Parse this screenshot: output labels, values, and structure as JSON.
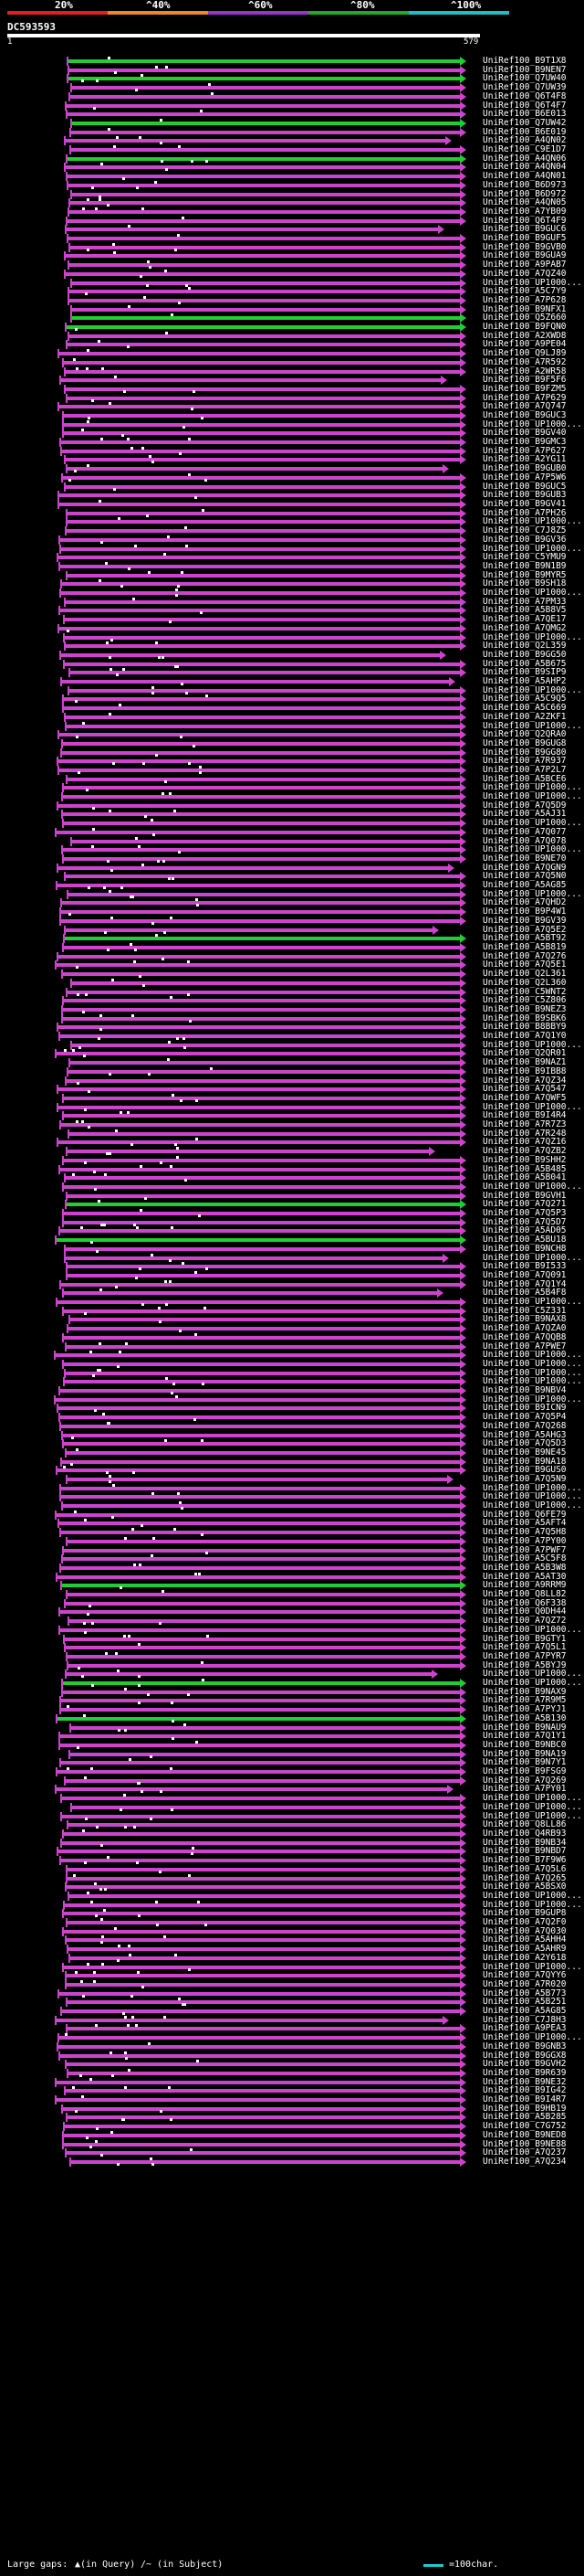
{
  "scale": {
    "labels": [
      "20%",
      "^40%",
      "^60%",
      "^80%",
      "^100%"
    ],
    "colors": [
      "#dd2222",
      "#ee8822",
      "#9933cc",
      "#22aa22",
      "#22bbcc"
    ]
  },
  "query": {
    "name": "DC593593",
    "start": "1",
    "end": "579"
  },
  "hits": [
    {
      "label": "UniRef100_B9T1X8",
      "color": "green"
    },
    {
      "label": "UniRef100_B9NEN7",
      "color": "pink"
    },
    {
      "label": "UniRef100_Q7UW40",
      "color": "green"
    },
    {
      "label": "UniRef100_Q7UW39",
      "color": "pink"
    },
    {
      "label": "UniRef100_Q6T4F8",
      "color": "pink"
    },
    {
      "label": "UniRef100_Q6T4F7",
      "color": "pink"
    },
    {
      "label": "UniRef100_B6E013",
      "color": "pink"
    },
    {
      "label": "UniRef100_Q7UW42",
      "color": "green"
    },
    {
      "label": "UniRef100_B6E019",
      "color": "pink"
    },
    {
      "label": "UniRef100_A4QN02",
      "color": "pink"
    },
    {
      "label": "UniRef100_C9E1D7",
      "color": "pink"
    },
    {
      "label": "UniRef100_A4QN06",
      "color": "green"
    },
    {
      "label": "UniRef100_A4QN04",
      "color": "pink"
    },
    {
      "label": "UniRef100_A4QN01",
      "color": "pink"
    },
    {
      "label": "UniRef100_B6D973",
      "color": "pink"
    },
    {
      "label": "UniRef100_B6D972",
      "color": "pink"
    },
    {
      "label": "UniRef100_A4QN05",
      "color": "pink"
    },
    {
      "label": "UniRef100_A7YB09",
      "color": "pink"
    },
    {
      "label": "UniRef100_Q6T4F9",
      "color": "pink"
    },
    {
      "label": "UniRef100_B9GUC6",
      "color": "pink"
    },
    {
      "label": "UniRef100_B9GUF5",
      "color": "pink"
    },
    {
      "label": "UniRef100_B9GVB0",
      "color": "pink"
    },
    {
      "label": "UniRef100_B9GUA9",
      "color": "pink"
    },
    {
      "label": "UniRef100_A9PAB7",
      "color": "pink"
    },
    {
      "label": "UniRef100_A7QZ40",
      "color": "pink"
    },
    {
      "label": "UniRef100_UP1000...",
      "color": "pink"
    },
    {
      "label": "UniRef100_A5C7Y9",
      "color": "pink"
    },
    {
      "label": "UniRef100_A7P628",
      "color": "pink"
    },
    {
      "label": "UniRef100_B9NFX1",
      "color": "pink"
    },
    {
      "label": "UniRef100_Q5Z660",
      "color": "green"
    },
    {
      "label": "UniRef100_B9FQN0",
      "color": "green"
    },
    {
      "label": "UniRef100_A2XWD8",
      "color": "pink"
    },
    {
      "label": "UniRef100_A9PE04",
      "color": "pink"
    },
    {
      "label": "UniRef100_Q9LJ89",
      "color": "pink"
    },
    {
      "label": "UniRef100_A7R592",
      "color": "pink"
    },
    {
      "label": "UniRef100_A2WR58",
      "color": "pink"
    },
    {
      "label": "UniRef100_B9F5F6",
      "color": "pink"
    },
    {
      "label": "UniRef100_B9FZM5",
      "color": "pink"
    },
    {
      "label": "UniRef100_A7P629",
      "color": "pink"
    },
    {
      "label": "UniRef100_A7Q747",
      "color": "pink"
    },
    {
      "label": "UniRef100_B9GUC3",
      "color": "pink"
    },
    {
      "label": "UniRef100_UP1000...",
      "color": "pink"
    },
    {
      "label": "UniRef100_B9GV40",
      "color": "pink"
    },
    {
      "label": "UniRef100_B9GMC3",
      "color": "pink"
    },
    {
      "label": "UniRef100_A7P627",
      "color": "pink"
    },
    {
      "label": "UniRef100_A2YG11",
      "color": "pink"
    },
    {
      "label": "UniRef100_B9GUB0",
      "color": "pink"
    },
    {
      "label": "UniRef100_A7P5W6",
      "color": "pink"
    },
    {
      "label": "UniRef100_B9GUC5",
      "color": "pink"
    },
    {
      "label": "UniRef100_B9GUB3",
      "color": "pink"
    },
    {
      "label": "UniRef100_B9GV41",
      "color": "pink"
    },
    {
      "label": "UniRef100_A7PH26",
      "color": "pink"
    },
    {
      "label": "UniRef100_UP1000...",
      "color": "pink"
    },
    {
      "label": "UniRef100_C7J8Z5",
      "color": "pink"
    },
    {
      "label": "UniRef100_B9GV36",
      "color": "pink"
    },
    {
      "label": "UniRef100_UP1000...",
      "color": "pink"
    },
    {
      "label": "UniRef100_C5YMU9",
      "color": "pink"
    },
    {
      "label": "UniRef100_B9N1B9",
      "color": "pink"
    },
    {
      "label": "UniRef100_B9MYR5",
      "color": "pink"
    },
    {
      "label": "UniRef100_B9SH18",
      "color": "pink"
    },
    {
      "label": "UniRef100_UP1000...",
      "color": "pink"
    },
    {
      "label": "UniRef100_A7PM33",
      "color": "pink"
    },
    {
      "label": "UniRef100_A5B8V5",
      "color": "pink"
    },
    {
      "label": "UniRef100_A7QE17",
      "color": "pink"
    },
    {
      "label": "UniRef100_A7QMG2",
      "color": "pink"
    },
    {
      "label": "UniRef100_UP1000...",
      "color": "pink"
    },
    {
      "label": "UniRef100_Q2L359",
      "color": "pink"
    },
    {
      "label": "UniRef100_B9GG50",
      "color": "pink"
    },
    {
      "label": "UniRef100_A5B675",
      "color": "pink"
    },
    {
      "label": "UniRef100_B9SIP9",
      "color": "pink"
    },
    {
      "label": "UniRef100_A5AHP2",
      "color": "pink"
    },
    {
      "label": "UniRef100_UP1000...",
      "color": "pink"
    },
    {
      "label": "UniRef100_A5C9Q5",
      "color": "pink"
    },
    {
      "label": "UniRef100_A5C669",
      "color": "pink"
    },
    {
      "label": "UniRef100_A2ZKF1",
      "color": "pink"
    },
    {
      "label": "UniRef100_UP1000...",
      "color": "pink"
    },
    {
      "label": "UniRef100_Q2QRA0",
      "color": "pink"
    },
    {
      "label": "UniRef100_B9GUG8",
      "color": "pink"
    },
    {
      "label": "UniRef100_B9GG80",
      "color": "pink"
    },
    {
      "label": "UniRef100_A7R937",
      "color": "pink"
    },
    {
      "label": "UniRef100_A7P2L7",
      "color": "pink"
    },
    {
      "label": "UniRef100_A5BCE6",
      "color": "pink"
    },
    {
      "label": "UniRef100_UP1000...",
      "color": "pink"
    },
    {
      "label": "UniRef100_UP1000...",
      "color": "pink"
    },
    {
      "label": "UniRef100_A7Q5D9",
      "color": "pink"
    },
    {
      "label": "UniRef100_A5AJ31",
      "color": "pink"
    },
    {
      "label": "UniRef100_UP1000...",
      "color": "pink"
    },
    {
      "label": "UniRef100_A7Q077",
      "color": "pink"
    },
    {
      "label": "UniRef100_A7Q078",
      "color": "pink"
    },
    {
      "label": "UniRef100_UP1000...",
      "color": "pink"
    },
    {
      "label": "UniRef100_B9NE70",
      "color": "pink"
    },
    {
      "label": "UniRef100_A7QGN9",
      "color": "pink"
    },
    {
      "label": "UniRef100_A7Q5N0",
      "color": "pink"
    },
    {
      "label": "UniRef100_A5AG85",
      "color": "pink"
    },
    {
      "label": "UniRef100_UP1000...",
      "color": "pink"
    },
    {
      "label": "UniRef100_A7QHD2",
      "color": "pink"
    },
    {
      "label": "UniRef100_B9P4W1",
      "color": "pink"
    },
    {
      "label": "UniRef100_B9GV39",
      "color": "pink"
    },
    {
      "label": "UniRef100_A7Q5E2",
      "color": "pink"
    },
    {
      "label": "UniRef100_A5BT92",
      "color": "green"
    },
    {
      "label": "UniRef100_A5B819",
      "color": "pink"
    },
    {
      "label": "UniRef100_A7Q276",
      "color": "pink"
    },
    {
      "label": "UniRef100_A7Q5E1",
      "color": "pink"
    },
    {
      "label": "UniRef100_Q2L361",
      "color": "pink"
    },
    {
      "label": "UniRef100_Q2L360",
      "color": "pink"
    },
    {
      "label": "UniRef100_C5WNT2",
      "color": "pink"
    },
    {
      "label": "UniRef100_C5Z806",
      "color": "pink"
    },
    {
      "label": "UniRef100_B9NEZ3",
      "color": "pink"
    },
    {
      "label": "UniRef100_B9SBK6",
      "color": "pink"
    },
    {
      "label": "UniRef100_B8BBY9",
      "color": "pink"
    },
    {
      "label": "UniRef100_A7Q1Y0",
      "color": "pink"
    },
    {
      "label": "UniRef100_UP1000...",
      "color": "pink"
    },
    {
      "label": "UniRef100_Q2QR01",
      "color": "pink"
    },
    {
      "label": "UniRef100_B9NAZ1",
      "color": "pink"
    },
    {
      "label": "UniRef100_B9IBB8",
      "color": "pink"
    },
    {
      "label": "UniRef100_A7QZ34",
      "color": "pink"
    },
    {
      "label": "UniRef100_A7Q547",
      "color": "pink"
    },
    {
      "label": "UniRef100_A7QWF5",
      "color": "pink"
    },
    {
      "label": "UniRef100_UP1000...",
      "color": "pink"
    },
    {
      "label": "UniRef100_B9I4R4",
      "color": "pink"
    },
    {
      "label": "UniRef100_A7R7Z3",
      "color": "pink"
    },
    {
      "label": "UniRef100_A7R248",
      "color": "pink"
    },
    {
      "label": "UniRef100_A7QZ16",
      "color": "pink"
    },
    {
      "label": "UniRef100_A7QZB2",
      "color": "pink"
    },
    {
      "label": "UniRef100_B9SHH2",
      "color": "pink"
    },
    {
      "label": "UniRef100_A5B485",
      "color": "pink"
    },
    {
      "label": "UniRef100_A5B041",
      "color": "pink"
    },
    {
      "label": "UniRef100_UP1000...",
      "color": "pink"
    },
    {
      "label": "UniRef100_B9GVH1",
      "color": "pink"
    },
    {
      "label": "UniRef100_A7Q271",
      "color": "green"
    },
    {
      "label": "UniRef100_A7Q5P3",
      "color": "pink"
    },
    {
      "label": "UniRef100_A7Q5D7",
      "color": "pink"
    },
    {
      "label": "UniRef100_A5AD05",
      "color": "pink"
    },
    {
      "label": "UniRef100_A5BU18",
      "color": "green"
    },
    {
      "label": "UniRef100_B9NCH8",
      "color": "pink"
    },
    {
      "label": "UniRef100_UP1000...",
      "color": "pink"
    },
    {
      "label": "UniRef100_B9I533",
      "color": "pink"
    },
    {
      "label": "UniRef100_A7Q091",
      "color": "pink"
    },
    {
      "label": "UniRef100_A7Q1Y4",
      "color": "pink"
    },
    {
      "label": "UniRef100_A5B4F8",
      "color": "pink"
    },
    {
      "label": "UniRef100_UP1000...",
      "color": "pink"
    },
    {
      "label": "UniRef100_C5Z331",
      "color": "pink"
    },
    {
      "label": "UniRef100_B9NAX8",
      "color": "pink"
    },
    {
      "label": "UniRef100_A7QZA0",
      "color": "pink"
    },
    {
      "label": "UniRef100_A7QQB8",
      "color": "pink"
    },
    {
      "label": "UniRef100_A7PWE7",
      "color": "pink"
    },
    {
      "label": "UniRef100_UP1000...",
      "color": "pink"
    },
    {
      "label": "UniRef100_UP1000...",
      "color": "pink"
    },
    {
      "label": "UniRef100_UP1000...",
      "color": "pink"
    },
    {
      "label": "UniRef100_UP1000...",
      "color": "pink"
    },
    {
      "label": "UniRef100_B9NBV4",
      "color": "pink"
    },
    {
      "label": "UniRef100_UP1000...",
      "color": "pink"
    },
    {
      "label": "UniRef100_B9ICN9",
      "color": "pink"
    },
    {
      "label": "UniRef100_A7Q5P4",
      "color": "pink"
    },
    {
      "label": "UniRef100_A7Q268",
      "color": "pink"
    },
    {
      "label": "UniRef100_A5AHG3",
      "color": "pink"
    },
    {
      "label": "UniRef100_A7Q5D3",
      "color": "pink"
    },
    {
      "label": "UniRef100_B9NE45",
      "color": "pink"
    },
    {
      "label": "UniRef100_B9NA18",
      "color": "pink"
    },
    {
      "label": "UniRef100_B9GUS0",
      "color": "pink"
    },
    {
      "label": "UniRef100_A7Q5N9",
      "color": "pink"
    },
    {
      "label": "UniRef100_UP1000...",
      "color": "pink"
    },
    {
      "label": "UniRef100_UP1000...",
      "color": "pink"
    },
    {
      "label": "UniRef100_UP1000...",
      "color": "pink"
    },
    {
      "label": "UniRef100_Q6FE79",
      "color": "pink"
    },
    {
      "label": "UniRef100_A5AFT4",
      "color": "pink"
    },
    {
      "label": "UniRef100_A7Q5H8",
      "color": "pink"
    },
    {
      "label": "UniRef100_A7PY00",
      "color": "pink"
    },
    {
      "label": "UniRef100_A7PWF7",
      "color": "pink"
    },
    {
      "label": "UniRef100_A5C5F8",
      "color": "pink"
    },
    {
      "label": "UniRef100_A5B3W8",
      "color": "pink"
    },
    {
      "label": "UniRef100_A5AT30",
      "color": "pink"
    },
    {
      "label": "UniRef100_A9RRM9",
      "color": "green"
    },
    {
      "label": "UniRef100_Q8LL82",
      "color": "pink"
    },
    {
      "label": "UniRef100_Q6F338",
      "color": "pink"
    },
    {
      "label": "UniRef100_Q0DH44",
      "color": "pink"
    },
    {
      "label": "UniRef100_A7QZ72",
      "color": "pink"
    },
    {
      "label": "UniRef100_UP1000...",
      "color": "pink"
    },
    {
      "label": "UniRef100_B9GTY1",
      "color": "pink"
    },
    {
      "label": "UniRef100_A7Q5L1",
      "color": "pink"
    },
    {
      "label": "UniRef100_A7PYR7",
      "color": "pink"
    },
    {
      "label": "UniRef100_A5BYJ9",
      "color": "pink"
    },
    {
      "label": "UniRef100_UP1000...",
      "color": "pink"
    },
    {
      "label": "UniRef100_UP1000...",
      "color": "green"
    },
    {
      "label": "UniRef100_B9NAX9",
      "color": "pink"
    },
    {
      "label": "UniRef100_A7R9M5",
      "color": "pink"
    },
    {
      "label": "UniRef100_A7PYJ1",
      "color": "pink"
    },
    {
      "label": "UniRef100_A5B130",
      "color": "green"
    },
    {
      "label": "UniRef100_B9NAU9",
      "color": "pink"
    },
    {
      "label": "UniRef100_A7Q1Y1",
      "color": "pink"
    },
    {
      "label": "UniRef100_B9NBC0",
      "color": "pink"
    },
    {
      "label": "UniRef100_B9NA19",
      "color": "pink"
    },
    {
      "label": "UniRef100_B9N7Y1",
      "color": "pink"
    },
    {
      "label": "UniRef100_B9FSG9",
      "color": "pink"
    },
    {
      "label": "UniRef100_A7Q269",
      "color": "pink"
    },
    {
      "label": "UniRef100_A7PY01",
      "color": "pink"
    },
    {
      "label": "UniRef100_UP1000...",
      "color": "pink"
    },
    {
      "label": "UniRef100_UP1000...",
      "color": "pink"
    },
    {
      "label": "UniRef100_UP1000...",
      "color": "pink"
    },
    {
      "label": "UniRef100_Q8LL86",
      "color": "pink"
    },
    {
      "label": "UniRef100_Q4RB93",
      "color": "pink"
    },
    {
      "label": "UniRef100_B9NB34",
      "color": "pink"
    },
    {
      "label": "UniRef100_B9NBD7",
      "color": "pink"
    },
    {
      "label": "UniRef100_B7F9W6",
      "color": "pink"
    },
    {
      "label": "UniRef100_A7Q5L6",
      "color": "pink"
    },
    {
      "label": "UniRef100_A7Q265",
      "color": "pink"
    },
    {
      "label": "UniRef100_A5BSX0",
      "color": "pink"
    },
    {
      "label": "UniRef100_UP1000...",
      "color": "pink"
    },
    {
      "label": "UniRef100_UP1000...",
      "color": "pink"
    },
    {
      "label": "UniRef100_B9GUP8",
      "color": "pink"
    },
    {
      "label": "UniRef100_A7Q2F0",
      "color": "pink"
    },
    {
      "label": "UniRef100_A7Q030",
      "color": "pink"
    },
    {
      "label": "UniRef100_A5AHH4",
      "color": "pink"
    },
    {
      "label": "UniRef100_A5AHR9",
      "color": "pink"
    },
    {
      "label": "UniRef100_A2Y618",
      "color": "pink"
    },
    {
      "label": "UniRef100_UP1000...",
      "color": "pink"
    },
    {
      "label": "UniRef100_A7QYY6",
      "color": "pink"
    },
    {
      "label": "UniRef100_A7R020",
      "color": "pink"
    },
    {
      "label": "UniRef100_A5B773",
      "color": "pink"
    },
    {
      "label": "UniRef100_A5B251",
      "color": "pink"
    },
    {
      "label": "UniRef100_A5AG85",
      "color": "pink"
    },
    {
      "label": "UniRef100_C7J8H3",
      "color": "pink"
    },
    {
      "label": "UniRef100_A9PEA3",
      "color": "pink"
    },
    {
      "label": "UniRef100_UP1000...",
      "color": "pink"
    },
    {
      "label": "UniRef100_B9GNB3",
      "color": "pink"
    },
    {
      "label": "UniRef100_B9GGX8",
      "color": "pink"
    },
    {
      "label": "UniRef100_B9GVH2",
      "color": "pink"
    },
    {
      "label": "UniRef100_B9R639",
      "color": "pink"
    },
    {
      "label": "UniRef100_B9NE32",
      "color": "pink"
    },
    {
      "label": "UniRef100_B9IG42",
      "color": "pink"
    },
    {
      "label": "UniRef100_B9I4R7",
      "color": "pink"
    },
    {
      "label": "UniRef100_B9HB19",
      "color": "pink"
    },
    {
      "label": "UniRef100_A5B285",
      "color": "pink"
    },
    {
      "label": "UniRef100_C7G752",
      "color": "pink"
    },
    {
      "label": "UniRef100_B9NED8",
      "color": "pink"
    },
    {
      "label": "UniRef100_B9NE88",
      "color": "pink"
    },
    {
      "label": "UniRef100_A7Q237",
      "color": "pink"
    },
    {
      "label": "UniRef100_A7Q234",
      "color": "pink"
    }
  ],
  "legend": {
    "large_gaps": "Large gaps:",
    "in_query": "▲(in Query)",
    "in_subject": "/~ (in Subject)",
    "scale_note": "=100char."
  }
}
